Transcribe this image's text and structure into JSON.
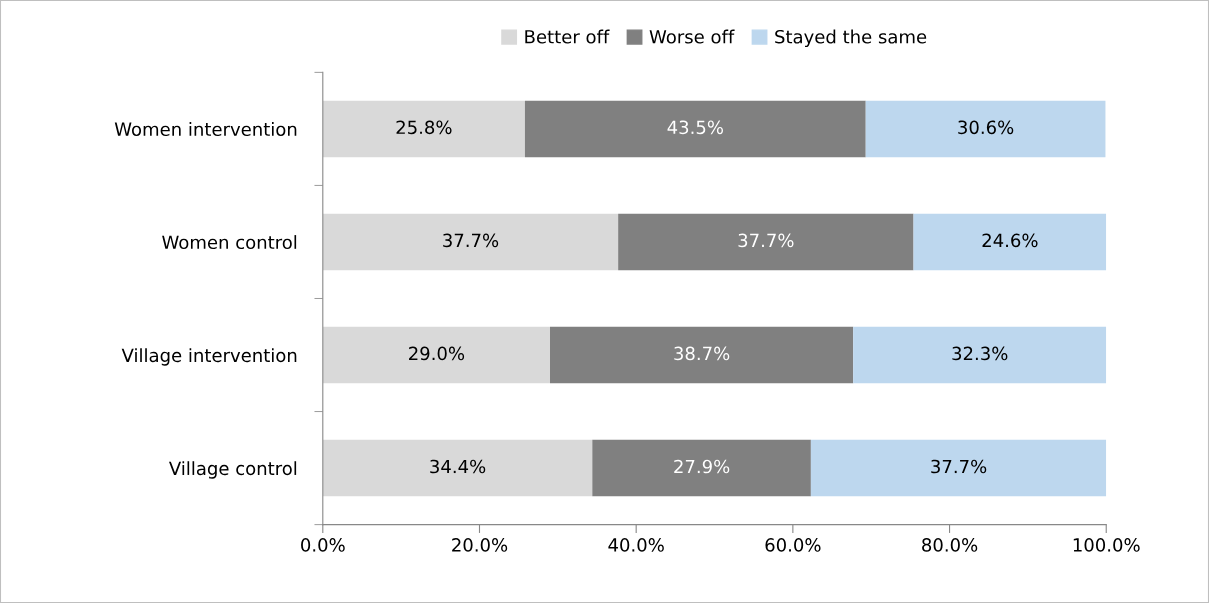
{
  "chart_data": {
    "type": "bar",
    "orientation": "horizontal",
    "stacked": true,
    "categories": [
      "Women intervention",
      "Women control",
      "Village intervention",
      "Village control"
    ],
    "series": [
      {
        "name": "Better off",
        "color": "#d9d9d9",
        "values": [
          25.8,
          37.7,
          29.0,
          34.4
        ],
        "value_labels": [
          "25.8%",
          "37.7%",
          "29.0%",
          "34.4%"
        ]
      },
      {
        "name": "Worse off",
        "color": "#808080",
        "values": [
          43.5,
          37.7,
          38.7,
          27.9
        ],
        "value_labels": [
          "43.5%",
          "37.7%",
          "38.7%",
          "27.9%"
        ]
      },
      {
        "name": "Stayed the same",
        "color": "#bdd7ee",
        "values": [
          30.6,
          24.6,
          32.3,
          37.7
        ],
        "value_labels": [
          "30.6%",
          "24.6%",
          "32.3%",
          "37.7%"
        ]
      }
    ],
    "xlim": [
      0,
      100
    ],
    "xticks": [
      {
        "value": 0,
        "label": "0.0%"
      },
      {
        "value": 20,
        "label": "20.0%"
      },
      {
        "value": 40,
        "label": "40.0%"
      },
      {
        "value": 60,
        "label": "60.0%"
      },
      {
        "value": 80,
        "label": "80.0%"
      },
      {
        "value": 100,
        "label": "100.0%"
      }
    ],
    "grid": false,
    "legend": "top"
  }
}
